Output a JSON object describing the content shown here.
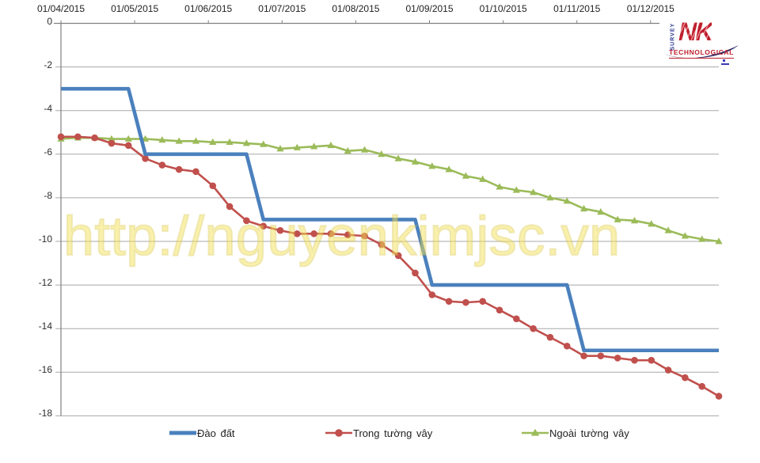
{
  "watermark": {
    "text": "http://nguyenkimjsc.vn",
    "color": "#F4E35A"
  },
  "logo": {
    "survey": "SURVEY",
    "nk": "NK",
    "technological": "TECHNOLOGICAL",
    "red": "#BE1E2D",
    "navy": "#262262",
    "survey_blue": "#2B3990"
  },
  "axis": {
    "grid_color": "#A8A8A8",
    "axis_color": "#808080",
    "label_color": "#2d2d2d"
  },
  "chart_data": {
    "type": "line",
    "title": "",
    "xlabel": "",
    "ylabel": "",
    "ylim": [
      -18,
      0
    ],
    "grid": true,
    "legend_position": "bottom",
    "x_tick_labels": [
      "01/04/2015",
      "01/05/2015",
      "01/06/2015",
      "01/07/2015",
      "01/08/2015",
      "01/09/2015",
      "01/10/2015",
      "01/11/2015",
      "01/12/2015"
    ],
    "y_tick_labels": [
      "0",
      "-2",
      "-4",
      "-6",
      "-8",
      "-10",
      "-12",
      "-14",
      "-16",
      "-18"
    ],
    "point_dates": [
      "01/04",
      "08/04",
      "15/04",
      "22/04",
      "29/04",
      "06/05",
      "13/05",
      "20/05",
      "27/05",
      "03/06",
      "10/06",
      "17/06",
      "24/06",
      "01/07",
      "08/07",
      "15/07",
      "22/07",
      "29/07",
      "05/08",
      "12/08",
      "19/08",
      "26/08",
      "02/09",
      "09/09",
      "16/09",
      "23/09",
      "30/09",
      "07/10",
      "14/10",
      "21/10",
      "28/10",
      "04/11",
      "11/11",
      "18/11",
      "25/11",
      "02/12",
      "09/12",
      "16/12",
      "23/12",
      "30/12"
    ],
    "series": [
      {
        "name": "Đào đất",
        "color": "#4A80BD",
        "marker": "none",
        "line_width": 4.6,
        "values": [
          -3,
          -3,
          -3,
          -3,
          -3,
          -6,
          -6,
          -6,
          -6,
          -6,
          -6,
          -6,
          -9,
          -9,
          -9,
          -9,
          -9,
          -9,
          -9,
          -9,
          -9,
          -9,
          -12,
          -12,
          -12,
          -12,
          -12,
          -12,
          -12,
          -12,
          -12,
          -15,
          -15,
          -15,
          -15,
          -15,
          -15,
          -15,
          -15,
          -15
        ]
      },
      {
        "name": "Trong tường vây",
        "color": "#C0504D",
        "marker": "circle",
        "line_width": 2.6,
        "values": [
          -5.2,
          -5.2,
          -5.25,
          -5.5,
          -5.6,
          -6.2,
          -6.5,
          -6.7,
          -6.8,
          -7.45,
          -8.4,
          -9.05,
          -9.3,
          -9.5,
          -9.65,
          -9.65,
          -9.65,
          -9.7,
          -9.75,
          -10.15,
          -10.65,
          -11.45,
          -12.45,
          -12.75,
          -12.8,
          -12.75,
          -13.15,
          -13.55,
          -14.0,
          -14.4,
          -14.8,
          -15.25,
          -15.25,
          -15.35,
          -15.45,
          -15.45,
          -15.9,
          -16.25,
          -16.65,
          -17.1
        ]
      },
      {
        "name": "Ngoài tường vây",
        "color": "#9BBB59",
        "marker": "triangle",
        "line_width": 2.6,
        "values": [
          -5.3,
          -5.25,
          -5.25,
          -5.3,
          -5.3,
          -5.3,
          -5.35,
          -5.4,
          -5.4,
          -5.45,
          -5.45,
          -5.5,
          -5.55,
          -5.75,
          -5.7,
          -5.65,
          -5.6,
          -5.85,
          -5.8,
          -6.0,
          -6.2,
          -6.35,
          -6.55,
          -6.7,
          -7.0,
          -7.15,
          -7.5,
          -7.65,
          -7.75,
          -8.0,
          -8.15,
          -8.5,
          -8.65,
          -9.0,
          -9.05,
          -9.2,
          -9.5,
          -9.75,
          -9.9,
          -10.0
        ]
      }
    ]
  }
}
